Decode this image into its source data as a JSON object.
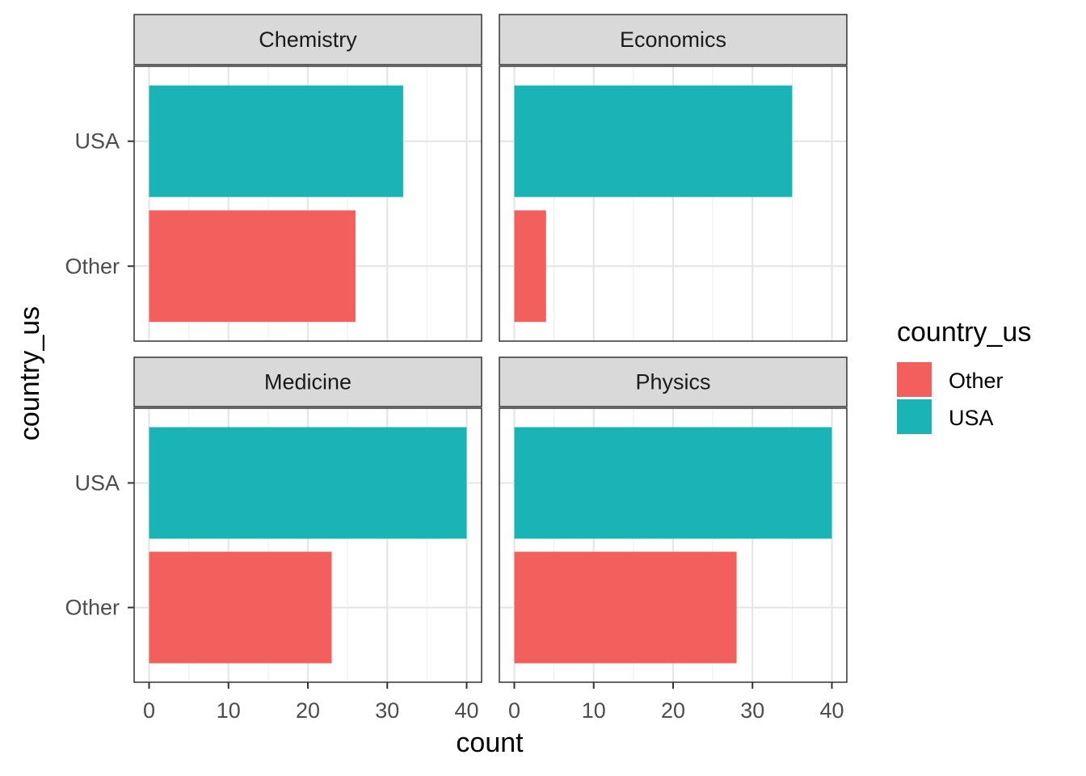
{
  "chart_data": {
    "type": "bar",
    "orientation": "horizontal",
    "facets": [
      {
        "title": "Chemistry",
        "values": {
          "Other": 26,
          "USA": 32
        }
      },
      {
        "title": "Economics",
        "values": {
          "Other": 4,
          "USA": 35
        }
      },
      {
        "title": "Medicine",
        "values": {
          "Other": 23,
          "USA": 40
        }
      },
      {
        "title": "Physics",
        "values": {
          "Other": 28,
          "USA": 40
        }
      }
    ],
    "categories": [
      "Other",
      "USA"
    ],
    "xlabel": "count",
    "ylabel": "country_us",
    "xlim": [
      0,
      40
    ],
    "x_ticks": [
      0,
      10,
      20,
      30,
      40
    ],
    "grid": true,
    "legend": {
      "title": "country_us",
      "position": "right",
      "entries": [
        {
          "label": "Other",
          "color": "#F35F5C"
        },
        {
          "label": "USA",
          "color": "#1AB4B7"
        }
      ]
    }
  }
}
